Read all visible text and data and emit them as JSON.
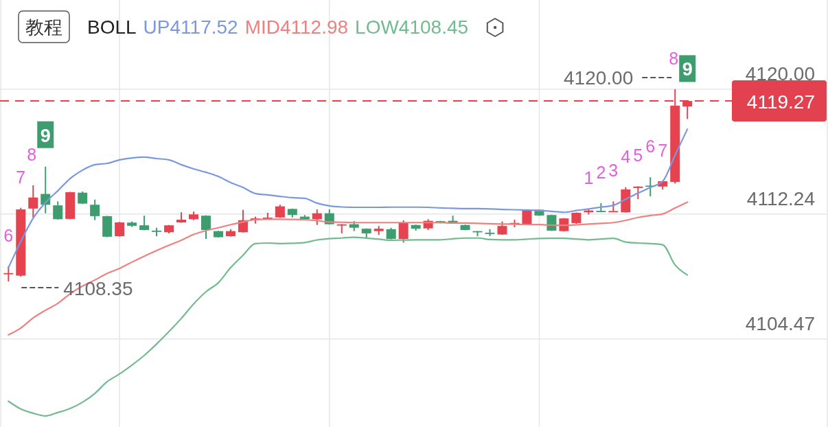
{
  "chart_data": {
    "type": "candlestick",
    "legend_title": "BOLL",
    "legend": "top left",
    "grid": true,
    "tick_labels": "y",
    "categories": [
      null,
      null,
      null,
      null,
      null,
      null,
      null,
      null,
      null,
      null,
      null,
      null,
      null,
      null,
      null,
      null,
      null,
      null,
      null,
      null,
      null,
      null,
      null,
      null,
      null,
      null,
      null,
      null,
      null,
      null,
      null,
      null,
      null,
      null,
      null,
      null,
      null,
      null,
      null,
      null,
      null,
      null,
      null,
      null,
      null,
      null,
      null,
      null,
      null,
      null,
      null,
      null,
      null,
      null,
      null,
      null
    ],
    "ohlc": [
      [
        4108.52,
        4108.99,
        4108.05,
        4108.57
      ],
      [
        4108.41,
        4112.63,
        4108.35,
        4112.53
      ],
      [
        4112.58,
        4114.03,
        4112.03,
        4113.27
      ],
      [
        4113.49,
        4115.19,
        4112.29,
        4112.82
      ],
      [
        4112.78,
        4113.03,
        4111.9,
        4111.92
      ],
      [
        4111.94,
        4113.62,
        4111.92,
        4113.6
      ],
      [
        4113.57,
        4113.64,
        4112.87,
        4112.89
      ],
      [
        4112.82,
        4113.14,
        4111.86,
        4112.11
      ],
      [
        4112.11,
        4112.13,
        4110.8,
        4110.83
      ],
      [
        4110.86,
        4111.75,
        4110.84,
        4111.72
      ],
      [
        4111.71,
        4111.78,
        4111.44,
        4111.51
      ],
      [
        4111.54,
        4112.14,
        4111.23,
        4111.25
      ],
      [
        4111.21,
        4111.39,
        4110.86,
        4111.16
      ],
      [
        4111.11,
        4111.56,
        4111.04,
        4111.54
      ],
      [
        4111.72,
        4112.35,
        4111.7,
        4111.89
      ],
      [
        4111.92,
        4112.39,
        4111.86,
        4112.22
      ],
      [
        4112.14,
        4112.16,
        4110.69,
        4111.25
      ],
      [
        4111.18,
        4111.2,
        4110.78,
        4110.8
      ],
      [
        4110.86,
        4111.3,
        4110.84,
        4111.18
      ],
      [
        4111.11,
        4112.5,
        4111.09,
        4111.86
      ],
      [
        4111.89,
        4112.08,
        4111.65,
        4111.97
      ],
      [
        4111.92,
        4112.32,
        4111.9,
        4112.02
      ],
      [
        4112.03,
        4112.82,
        4112.01,
        4112.72
      ],
      [
        4112.56,
        4112.58,
        4112.03,
        4112.18
      ],
      [
        4112.08,
        4112.18,
        4111.9,
        4111.92
      ],
      [
        4111.92,
        4112.53,
        4111.56,
        4112.29
      ],
      [
        4112.29,
        4112.53,
        4111.59,
        4111.61
      ],
      [
        4111.53,
        4111.62,
        4111.04,
        4111.6
      ],
      [
        4111.61,
        4111.8,
        4111.18,
        4111.39
      ],
      [
        4111.33,
        4111.35,
        4110.78,
        4111.04
      ],
      [
        4111.18,
        4111.5,
        4110.94,
        4111.33
      ],
      [
        4111.3,
        4111.39,
        4110.67,
        4110.69
      ],
      [
        4110.69,
        4111.85,
        4110.47,
        4111.71
      ],
      [
        4111.56,
        4111.58,
        4111.21,
        4111.33
      ],
      [
        4111.35,
        4111.92,
        4111.25,
        4111.82
      ],
      [
        4111.8,
        4111.82,
        4111.66,
        4111.68
      ],
      [
        4111.82,
        4112.14,
        4111.69,
        4111.71
      ],
      [
        4111.56,
        4111.58,
        4111.23,
        4111.25
      ],
      [
        4111.18,
        4111.18,
        4110.86,
        4111.13
      ],
      [
        4111.08,
        4111.3,
        4110.87,
        4111.05
      ],
      [
        4110.97,
        4111.78,
        4110.95,
        4111.5
      ],
      [
        4111.66,
        4111.89,
        4111.42,
        4111.69
      ],
      [
        4111.61,
        4112.51,
        4111.59,
        4112.49
      ],
      [
        4112.51,
        4112.53,
        4112.13,
        4112.15
      ],
      [
        4112.18,
        4112.2,
        4111.19,
        4111.21
      ],
      [
        4111.18,
        4111.99,
        4111.16,
        4111.97
      ],
      [
        4111.68,
        4112.34,
        4111.61,
        4112.32
      ],
      [
        4112.35,
        4112.56,
        4112.21,
        4112.46
      ],
      [
        4112.44,
        4112.92,
        4112.36,
        4112.38
      ],
      [
        4112.39,
        4113.03,
        4112.37,
        4112.43
      ],
      [
        4112.35,
        4113.91,
        4112.33,
        4113.77
      ],
      [
        4113.86,
        4113.97,
        4113.17,
        4113.95
      ],
      [
        4114.01,
        4114.53,
        4113.34,
        4113.98
      ],
      [
        4113.95,
        4114.3,
        4113.77,
        4114.28
      ],
      [
        4114.24,
        4120.0,
        4114.14,
        4118.98
      ],
      [
        4118.93,
        4119.3,
        4118.15,
        4119.27
      ]
    ],
    "colors": [
      "#e5434f",
      "#e5434f",
      "#e5434f",
      "#3e9d6f",
      "#3e9d6f",
      "#e5434f",
      "#3e9d6f",
      "#3e9d6f",
      "#3e9d6f",
      "#e5434f",
      "#3e9d6f",
      "#3e9d6f",
      "#3e9d6f",
      "#e5434f",
      "#e5434f",
      "#e5434f",
      "#3e9d6f",
      "#3e9d6f",
      "#e5434f",
      "#e5434f",
      "#e5434f",
      "#e5434f",
      "#e5434f",
      "#3e9d6f",
      "#3e9d6f",
      "#e5434f",
      "#3e9d6f",
      "#e5434f",
      "#3e9d6f",
      "#3e9d6f",
      "#e5434f",
      "#3e9d6f",
      "#e5434f",
      "#3e9d6f",
      "#e5434f",
      "#3e9d6f",
      "#3e9d6f",
      "#3e9d6f",
      "#3e9d6f",
      "#3e9d6f",
      "#e5434f",
      "#e5434f",
      "#e5434f",
      "#3e9d6f",
      "#3e9d6f",
      "#e5434f",
      "#e5434f",
      "#e5434f",
      "#3e9d6f",
      "#e5434f",
      "#e5434f",
      "#e5434f",
      "#3e9d6f",
      "#e5434f",
      "#e5434f",
      "#e5434f"
    ],
    "value_labels": [
      "6",
      "7",
      "8",
      "9",
      null,
      null,
      null,
      null,
      null,
      null,
      null,
      null,
      null,
      null,
      null,
      null,
      null,
      null,
      null,
      null,
      null,
      null,
      null,
      null,
      null,
      null,
      null,
      null,
      null,
      null,
      null,
      null,
      null,
      null,
      null,
      null,
      null,
      null,
      null,
      null,
      null,
      null,
      null,
      null,
      null,
      null,
      null,
      "1",
      "2",
      "3",
      "4",
      "5",
      "6",
      "7",
      "8",
      "9"
    ],
    "series": [
      {
        "name": "UP4117.52",
        "type": "line",
        "color": "#7a98de",
        "values": [
          4108.91,
          4110.53,
          4111.98,
          4112.96,
          4113.69,
          4114.45,
          4114.97,
          4115.31,
          4115.39,
          4115.61,
          4115.73,
          4115.78,
          4115.69,
          4115.61,
          4115.31,
          4115.05,
          4114.84,
          4114.58,
          4114.2,
          4113.9,
          4113.52,
          4113.43,
          4113.34,
          4113.26,
          4113.22,
          4112.92,
          4112.75,
          4112.68,
          4112.66,
          4112.66,
          4112.66,
          4112.67,
          4112.67,
          4112.67,
          4112.66,
          4112.62,
          4112.6,
          4112.58,
          4112.58,
          4112.56,
          4112.53,
          4112.51,
          4112.49,
          4112.46,
          4112.41,
          4112.35,
          4112.46,
          4112.56,
          4112.67,
          4112.78,
          4113.16,
          4113.54,
          4113.9,
          4114.28,
          4115.9,
          4117.52
        ]
      },
      {
        "name": "MID4112.98",
        "type": "line",
        "color": "#ee8080",
        "values": [
          4104.73,
          4105.15,
          4105.78,
          4106.26,
          4106.69,
          4107.29,
          4107.76,
          4108.14,
          4108.55,
          4108.86,
          4109.25,
          4109.62,
          4109.97,
          4110.3,
          4110.61,
          4110.97,
          4111.21,
          4111.39,
          4111.58,
          4111.75,
          4111.89,
          4111.92,
          4111.92,
          4111.91,
          4111.89,
          4111.83,
          4111.75,
          4111.73,
          4111.71,
          4111.71,
          4111.71,
          4111.71,
          4111.71,
          4111.71,
          4111.71,
          4111.71,
          4111.68,
          4111.68,
          4111.66,
          4111.64,
          4111.62,
          4111.61,
          4111.59,
          4111.59,
          4111.55,
          4111.54,
          4111.57,
          4111.62,
          4111.66,
          4111.71,
          4111.85,
          4112.03,
          4112.15,
          4112.25,
          4112.62,
          4112.98
        ]
      },
      {
        "name": "LOW4108.45",
        "type": "line",
        "color": "#72bb8e",
        "values": [
          4100.6,
          4100.12,
          4099.86,
          4099.69,
          4099.9,
          4100.15,
          4100.54,
          4101.09,
          4101.82,
          4102.3,
          4102.85,
          4103.45,
          4104.16,
          4104.93,
          4105.75,
          4106.65,
          4107.41,
          4107.97,
          4108.91,
          4109.68,
          4110.4,
          4110.44,
          4110.4,
          4110.42,
          4110.47,
          4110.63,
          4110.71,
          4110.75,
          4110.8,
          4110.74,
          4110.68,
          4110.61,
          4110.63,
          4110.64,
          4110.64,
          4110.64,
          4110.7,
          4110.75,
          4110.75,
          4110.66,
          4110.64,
          4110.64,
          4110.68,
          4110.72,
          4110.73,
          4110.73,
          4110.69,
          4110.64,
          4110.69,
          4110.73,
          4110.5,
          4110.44,
          4110.4,
          4110.33,
          4109.08,
          4108.45
        ]
      }
    ],
    "ylim": [
      4099.0,
      4125.55
    ],
    "yticks": [
      {
        "value": 4120,
        "label": "4120.00"
      },
      4112.24,
      4104.47
    ],
    "ref_lines": [
      {
        "axis": "y",
        "value": 4119.27,
        "color": "#e2414f",
        "line_style": "dashed"
      }
    ],
    "annotations": [
      "教程",
      "4120.00",
      {
        "text": "4108.35",
        "y": 4108.35
      },
      "4119.27"
    ]
  }
}
